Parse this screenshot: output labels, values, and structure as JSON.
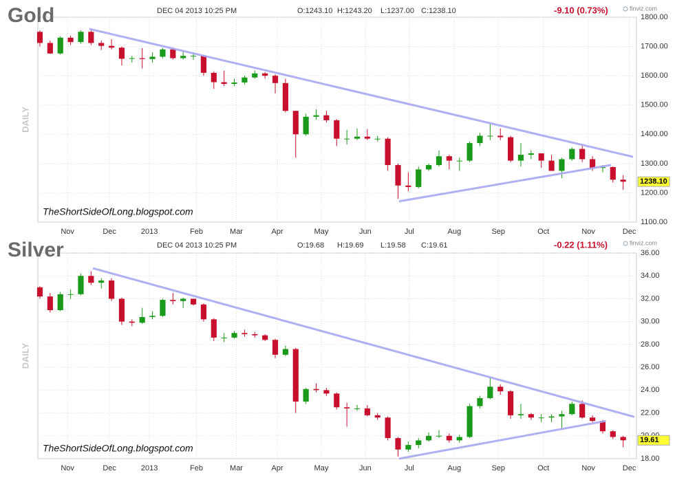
{
  "chart_data": [
    {
      "type": "candlestick",
      "title": "Gold",
      "timestamp": "DEC 04 2013 10:25 PM",
      "quote": [
        "O:1243.10",
        "H:1243.20",
        "L:1237.00",
        "C:1238.10"
      ],
      "change": "-9.10 (0.73%)",
      "source": "finviz.com",
      "axis_label": "DAILY",
      "watermark": "TheShortSideOfLong.blogspot.com",
      "up_color": "#1a9a1a",
      "down_color": "#c8102e",
      "trend_color": "#a6a6f0",
      "grid": true,
      "xlim": [
        -0.2,
        58.3
      ],
      "xticks": [
        {
          "value": 2.7,
          "label": "Nov"
        },
        {
          "value": 6.8,
          "label": "Dec"
        },
        {
          "value": 10.7,
          "label": "2013"
        },
        {
          "value": 15.3,
          "label": "Feb"
        },
        {
          "value": 19.2,
          "label": "Mar"
        },
        {
          "value": 23.2,
          "label": "Apr"
        },
        {
          "value": 27.5,
          "label": "May"
        },
        {
          "value": 31.8,
          "label": "Jun"
        },
        {
          "value": 36.1,
          "label": "Jul"
        },
        {
          "value": 40.5,
          "label": "Aug"
        },
        {
          "value": 44.8,
          "label": "Sep"
        },
        {
          "value": 49.2,
          "label": "Oct"
        },
        {
          "value": 53.6,
          "label": "Nov"
        },
        {
          "value": 57.6,
          "label": "Dec"
        }
      ],
      "ylim": [
        1100,
        1800
      ],
      "yticks": [
        {
          "value": 1100,
          "label": "1100.00"
        },
        {
          "value": 1200,
          "label": "1200.00"
        },
        {
          "value": 1300,
          "label": "1300.00"
        },
        {
          "value": 1400,
          "label": "1400.00"
        },
        {
          "value": 1500,
          "label": "1500.00"
        },
        {
          "value": 1600,
          "label": "1600.00"
        },
        {
          "value": 1700,
          "label": "1700.00"
        },
        {
          "value": 1800,
          "label": "1800.00"
        }
      ],
      "last": {
        "value": 1238.1,
        "label": "1238.10"
      },
      "open": [
        1750,
        1712,
        1676,
        1730,
        1715,
        1750,
        1712,
        1702,
        1696,
        1658,
        1660,
        1657,
        1665,
        1690,
        1660,
        1668,
        1668,
        1610,
        1578,
        1572,
        1577,
        1594,
        1608,
        1600,
        1575,
        1480,
        1400,
        1460,
        1465,
        1448,
        1385,
        1385,
        1392,
        1385,
        1385,
        1295,
        1225,
        1220,
        1280,
        1295,
        1325,
        1310,
        1310,
        1370,
        1395,
        1395,
        1390,
        1310,
        1330,
        1335,
        1310,
        1275,
        1315,
        1350,
        1315,
        1285,
        1288,
        1245
      ],
      "high": [
        1755,
        1720,
        1735,
        1737,
        1755,
        1756,
        1720,
        1725,
        1700,
        1668,
        1695,
        1680,
        1695,
        1696,
        1685,
        1680,
        1672,
        1615,
        1617,
        1590,
        1600,
        1618,
        1612,
        1605,
        1590,
        1480,
        1470,
        1485,
        1480,
        1452,
        1415,
        1420,
        1418,
        1395,
        1390,
        1300,
        1270,
        1290,
        1300,
        1345,
        1330,
        1320,
        1375,
        1405,
        1435,
        1420,
        1395,
        1370,
        1345,
        1335,
        1330,
        1320,
        1355,
        1360,
        1325,
        1295,
        1290,
        1260
      ],
      "low": [
        1700,
        1675,
        1672,
        1705,
        1710,
        1705,
        1688,
        1690,
        1635,
        1645,
        1625,
        1645,
        1660,
        1655,
        1655,
        1655,
        1600,
        1555,
        1565,
        1565,
        1570,
        1590,
        1590,
        1540,
        1475,
        1320,
        1395,
        1450,
        1440,
        1360,
        1365,
        1380,
        1380,
        1375,
        1275,
        1180,
        1205,
        1215,
        1275,
        1290,
        1280,
        1275,
        1305,
        1360,
        1380,
        1380,
        1305,
        1290,
        1315,
        1285,
        1275,
        1250,
        1310,
        1305,
        1275,
        1270,
        1235,
        1210
      ],
      "close": [
        1712,
        1676,
        1730,
        1715,
        1750,
        1712,
        1702,
        1696,
        1658,
        1660,
        1657,
        1665,
        1690,
        1660,
        1668,
        1668,
        1610,
        1578,
        1572,
        1577,
        1594,
        1608,
        1600,
        1575,
        1480,
        1400,
        1460,
        1465,
        1448,
        1385,
        1385,
        1392,
        1385,
        1385,
        1295,
        1225,
        1220,
        1280,
        1295,
        1325,
        1310,
        1310,
        1370,
        1395,
        1395,
        1390,
        1310,
        1330,
        1335,
        1310,
        1275,
        1315,
        1350,
        1315,
        1285,
        1288,
        1245,
        1238.1
      ],
      "trendlines": [
        {
          "x": [
            4.84,
            57.97
          ],
          "y": [
            1760,
            1323
          ]
        },
        {
          "x": [
            35.1,
            55.8
          ],
          "y": [
            1171,
            1295
          ]
        }
      ]
    },
    {
      "type": "candlestick",
      "title": "Silver",
      "timestamp": "DEC 04 2013 10:25 PM",
      "quote": [
        "O:19.68",
        "H:19.69",
        "L:19.58",
        "C:19.61"
      ],
      "change": "-0.22 (1.11%)",
      "source": "finviz.com",
      "axis_label": "DAILY",
      "watermark": "TheShortSideOfLong.blogspot.com",
      "up_color": "#1a9a1a",
      "down_color": "#c8102e",
      "trend_color": "#a6a6f0",
      "grid": true,
      "xlim": [
        -0.2,
        58.3
      ],
      "xticks": [
        {
          "value": 2.7,
          "label": "Nov"
        },
        {
          "value": 6.8,
          "label": "Dec"
        },
        {
          "value": 10.7,
          "label": "2013"
        },
        {
          "value": 15.3,
          "label": "Feb"
        },
        {
          "value": 19.2,
          "label": "Mar"
        },
        {
          "value": 23.2,
          "label": "Apr"
        },
        {
          "value": 27.5,
          "label": "May"
        },
        {
          "value": 31.8,
          "label": "Jun"
        },
        {
          "value": 36.1,
          "label": "Jul"
        },
        {
          "value": 40.5,
          "label": "Aug"
        },
        {
          "value": 44.8,
          "label": "Sep"
        },
        {
          "value": 49.2,
          "label": "Oct"
        },
        {
          "value": 53.6,
          "label": "Nov"
        },
        {
          "value": 57.6,
          "label": "Dec"
        }
      ],
      "ylim": [
        18,
        36
      ],
      "yticks": [
        {
          "value": 18,
          "label": "18.00"
        },
        {
          "value": 20,
          "label": "20.00"
        },
        {
          "value": 22,
          "label": "22.00"
        },
        {
          "value": 24,
          "label": "24.00"
        },
        {
          "value": 26,
          "label": "26.00"
        },
        {
          "value": 28,
          "label": "28.00"
        },
        {
          "value": 30,
          "label": "30.00"
        },
        {
          "value": 32,
          "label": "32.00"
        },
        {
          "value": 34,
          "label": "34.00"
        },
        {
          "value": 36,
          "label": "36.00"
        }
      ],
      "last": {
        "value": 19.61,
        "label": "19.61"
      },
      "open": [
        33.0,
        32.2,
        31.0,
        32.4,
        32.4,
        34.0,
        33.4,
        33.6,
        32.0,
        30.0,
        29.9,
        30.4,
        30.5,
        31.9,
        31.8,
        32.0,
        31.5,
        30.2,
        28.6,
        28.6,
        29.0,
        28.9,
        28.8,
        28.4,
        27.1,
        27.6,
        23.0,
        24.1,
        24.0,
        23.7,
        22.5,
        22.4,
        22.4,
        21.8,
        21.6,
        19.8,
        18.8,
        19.2,
        19.6,
        20.0,
        20.0,
        19.6,
        19.9,
        22.6,
        23.3,
        24.3,
        23.9,
        21.8,
        21.9,
        21.6,
        21.6,
        21.7,
        21.9,
        22.8,
        21.6,
        21.3,
        20.4,
        19.9
      ],
      "high": [
        33.1,
        32.5,
        32.6,
        32.8,
        34.2,
        34.4,
        33.8,
        33.8,
        32.1,
        30.2,
        31.2,
        30.9,
        32.0,
        32.5,
        32.1,
        32.0,
        31.6,
        30.3,
        29.0,
        29.2,
        29.3,
        29.1,
        28.9,
        28.5,
        27.9,
        27.7,
        24.2,
        24.6,
        24.2,
        23.8,
        22.9,
        22.7,
        22.7,
        22.0,
        21.7,
        19.9,
        19.5,
        19.8,
        20.3,
        20.5,
        20.2,
        20.1,
        22.8,
        23.5,
        25.2,
        24.5,
        24.0,
        22.8,
        22.0,
        21.9,
        21.9,
        22.2,
        23.0,
        23.1,
        21.8,
        21.4,
        20.5,
        20.0
      ],
      "low": [
        32.0,
        30.8,
        30.9,
        32.0,
        32.3,
        33.2,
        32.9,
        31.8,
        29.7,
        29.6,
        29.8,
        30.2,
        30.4,
        31.5,
        31.2,
        31.4,
        30.0,
        28.3,
        28.2,
        28.5,
        28.7,
        28.6,
        28.3,
        26.8,
        27.0,
        22.0,
        22.8,
        23.8,
        23.5,
        22.3,
        20.8,
        22.2,
        21.7,
        21.4,
        19.6,
        18.2,
        18.6,
        18.9,
        19.5,
        19.8,
        19.4,
        19.4,
        19.8,
        22.4,
        23.2,
        23.6,
        21.5,
        21.5,
        21.4,
        21.2,
        21.2,
        20.6,
        21.8,
        21.5,
        21.2,
        20.2,
        19.7,
        19.0
      ],
      "close": [
        32.2,
        31.0,
        32.4,
        32.4,
        34.0,
        33.4,
        33.6,
        32.0,
        30.0,
        29.9,
        30.4,
        30.5,
        31.9,
        31.8,
        32.0,
        31.5,
        30.2,
        28.6,
        28.6,
        29.0,
        28.9,
        28.8,
        28.4,
        27.1,
        27.6,
        23.0,
        24.1,
        24.0,
        23.7,
        22.5,
        22.4,
        22.4,
        21.8,
        21.6,
        19.8,
        18.8,
        19.2,
        19.6,
        20.0,
        20.0,
        19.6,
        19.9,
        22.6,
        23.3,
        24.3,
        23.9,
        21.8,
        21.9,
        21.6,
        21.6,
        21.7,
        21.9,
        22.8,
        21.6,
        21.3,
        20.4,
        19.9,
        19.61
      ],
      "trendlines": [
        {
          "x": [
            5.18,
            58.1
          ],
          "y": [
            34.67,
            21.66
          ]
        },
        {
          "x": [
            35.1,
            55.3
          ],
          "y": [
            18.0,
            21.3
          ]
        }
      ]
    }
  ]
}
